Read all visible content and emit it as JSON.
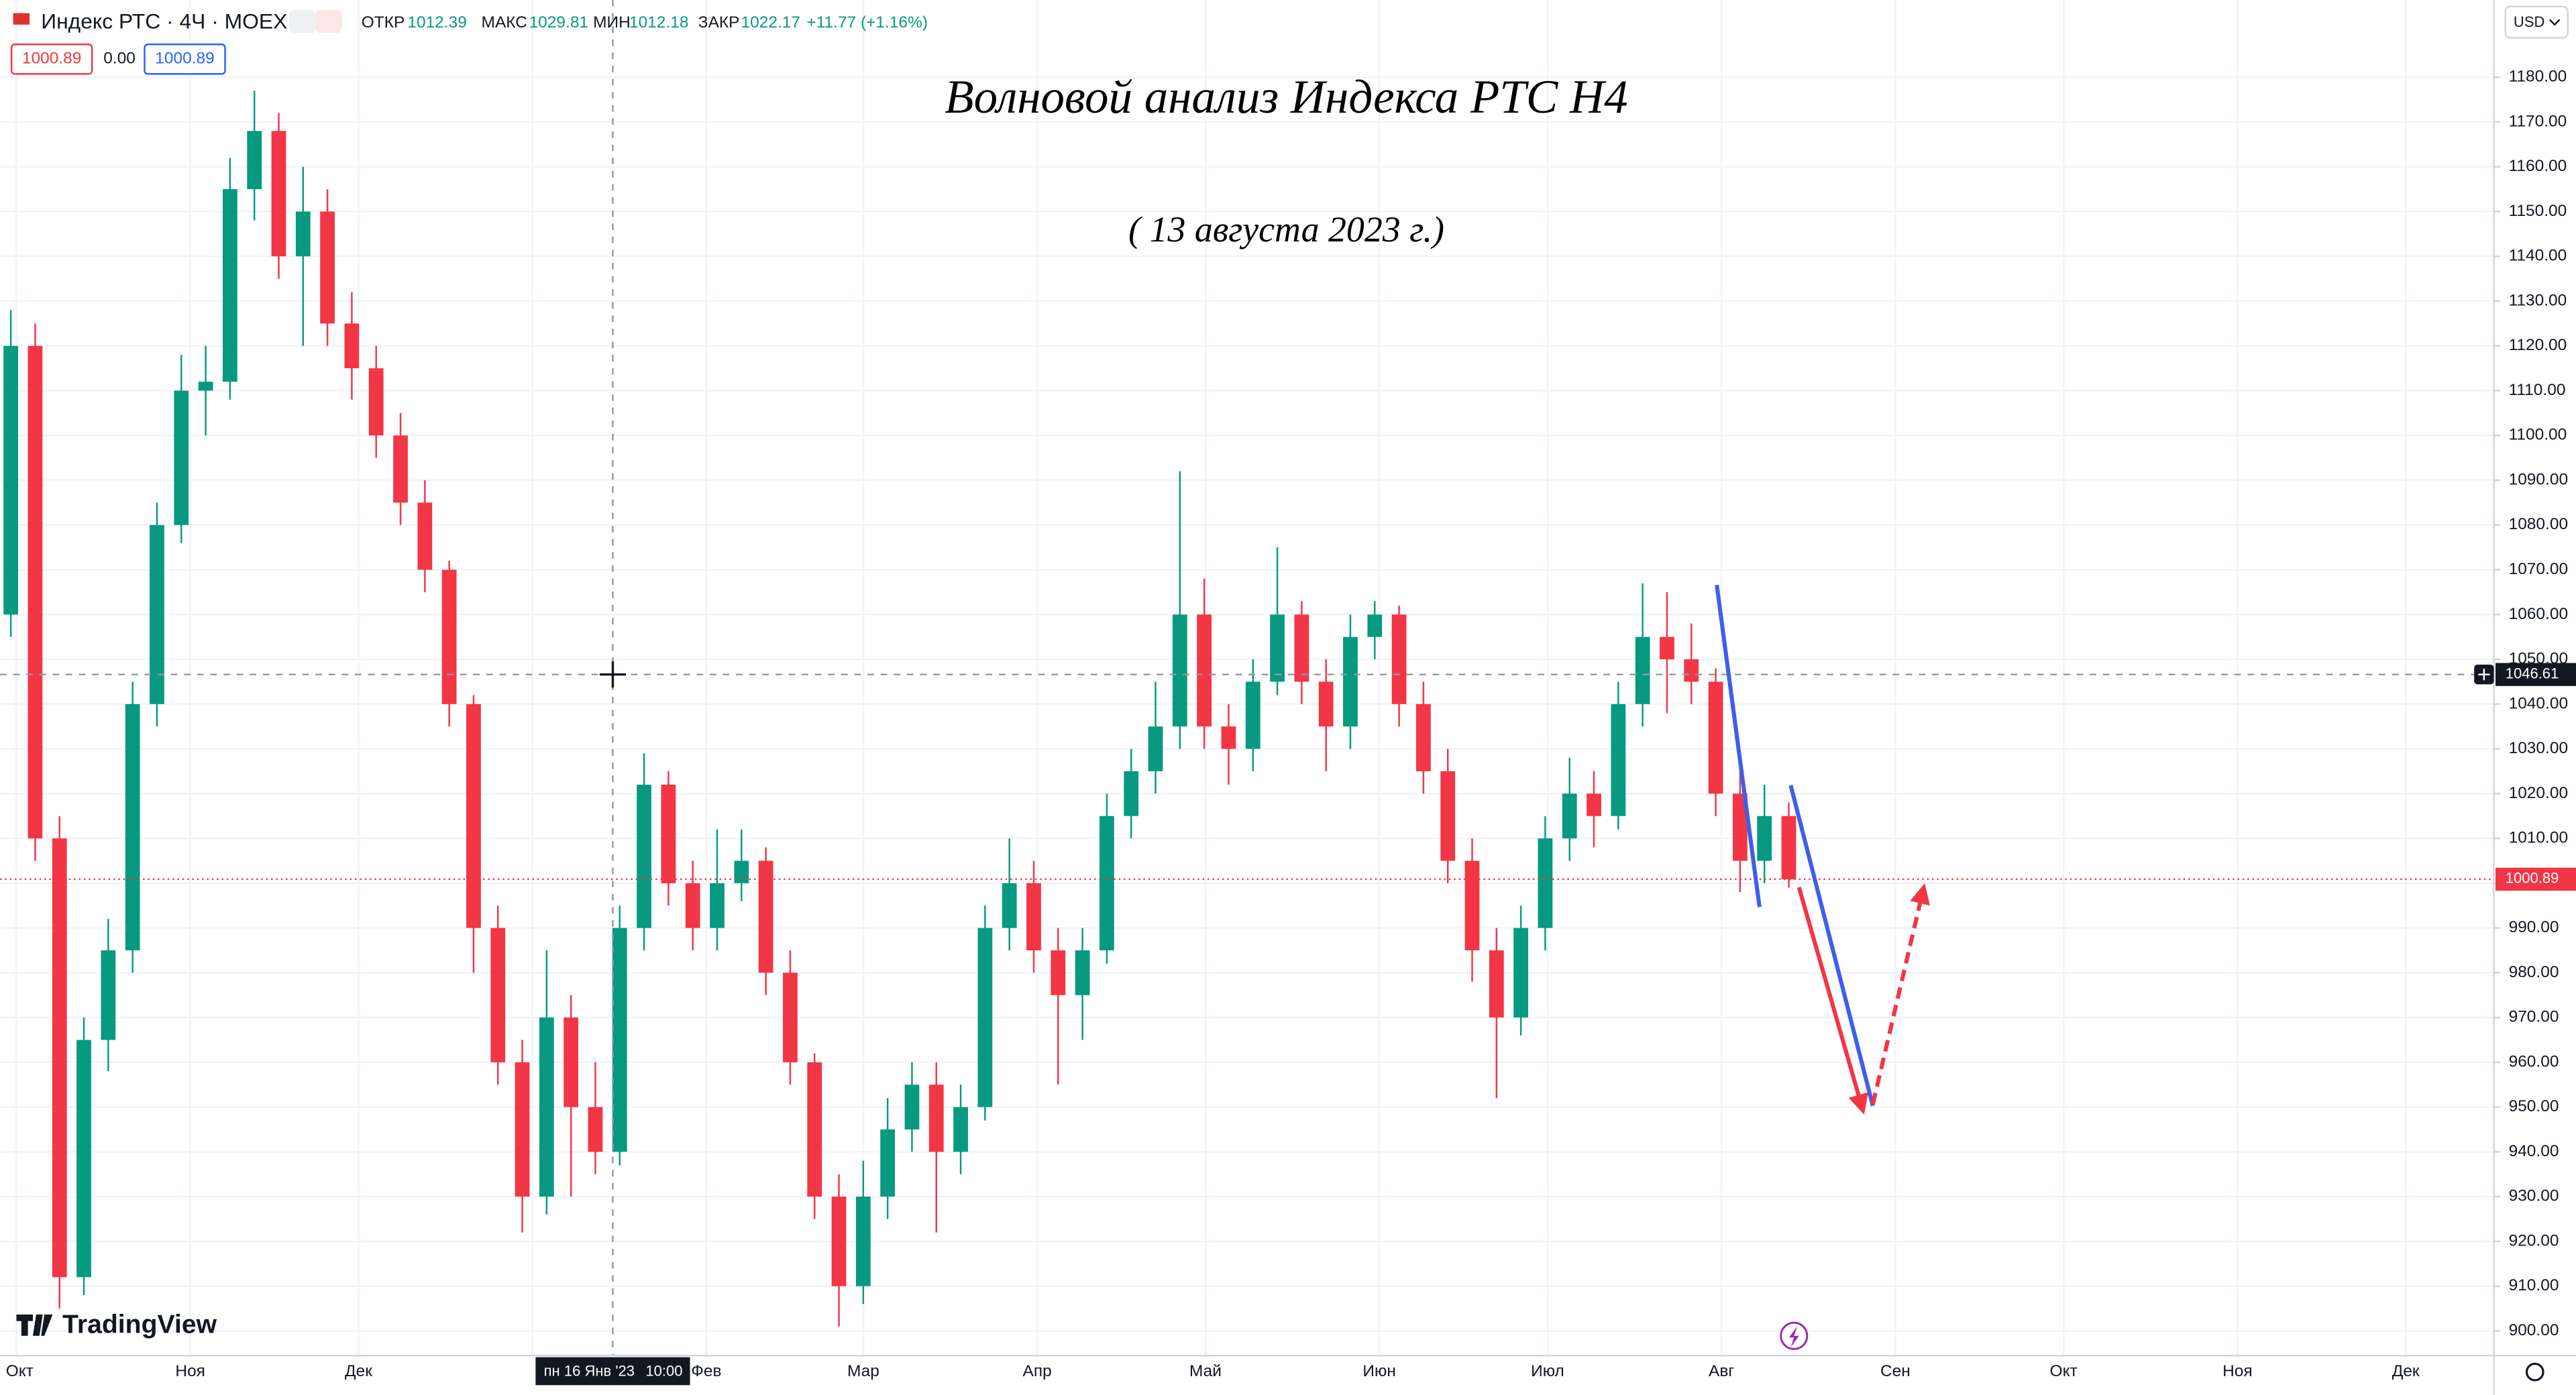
{
  "header": {
    "symbol": "Индекс РТС · 4Ч · MOEX",
    "ohlc": [
      {
        "label": "ОТКР",
        "value": 1012.39
      },
      {
        "label": "МАКС",
        "value": 1029.81
      },
      {
        "label": "МИН",
        "value": 1012.18
      },
      {
        "label": "ЗАКР",
        "value": 1022.17
      }
    ],
    "change": "+11.77 (+1.16%)",
    "price_boxes": [
      1000.89,
      "0.00",
      1000.89
    ],
    "currency": "USD"
  },
  "chart_data": {
    "type": "candlestick",
    "title": "Волновой анализ Индекса РТС Н4",
    "subtitle": "( 13 августа 2023 г.)",
    "open": [
      1060,
      1120,
      1010,
      912,
      965,
      985,
      1040,
      1080,
      1110,
      1112,
      1155,
      1168,
      1140,
      1150,
      1125,
      1115,
      1100,
      1085,
      1070,
      1040,
      990,
      960,
      930,
      970,
      950,
      940,
      990,
      1022,
      1000,
      990,
      1000,
      1005,
      980,
      960,
      930,
      910,
      930,
      945,
      955,
      940,
      950,
      990,
      1000,
      985,
      975,
      985,
      1015,
      1025,
      1035,
      1060,
      1035,
      1030,
      1045,
      1060,
      1045,
      1035,
      1055,
      1060,
      1040,
      1025,
      1005,
      985,
      970,
      990,
      1010,
      1020,
      1015,
      1040,
      1055,
      1050,
      1045,
      1020,
      1005,
      1015
    ],
    "high": [
      1128,
      1125,
      1015,
      970,
      992,
      1045,
      1085,
      1118,
      1120,
      1162,
      1177,
      1172,
      1160,
      1155,
      1132,
      1120,
      1105,
      1090,
      1072,
      1042,
      995,
      965,
      985,
      975,
      960,
      995,
      1029,
      1025,
      1005,
      1012,
      1012,
      1008,
      985,
      962,
      935,
      938,
      952,
      960,
      960,
      955,
      995,
      1010,
      1005,
      990,
      990,
      1020,
      1030,
      1045,
      1092,
      1068,
      1040,
      1050,
      1075,
      1063,
      1050,
      1060,
      1063,
      1062,
      1045,
      1030,
      1010,
      990,
      995,
      1015,
      1028,
      1025,
      1045,
      1067,
      1065,
      1058,
      1048,
      1025,
      1022,
      1018
    ],
    "low": [
      1055,
      1005,
      905,
      908,
      958,
      980,
      1035,
      1076,
      1100,
      1108,
      1148,
      1135,
      1120,
      1120,
      1108,
      1095,
      1080,
      1065,
      1035,
      980,
      955,
      922,
      926,
      930,
      935,
      937,
      985,
      995,
      985,
      985,
      996,
      975,
      955,
      925,
      901,
      906,
      925,
      940,
      922,
      935,
      947,
      985,
      980,
      955,
      965,
      982,
      1010,
      1020,
      1030,
      1030,
      1022,
      1025,
      1042,
      1040,
      1025,
      1030,
      1050,
      1035,
      1020,
      1000,
      978,
      952,
      966,
      985,
      1005,
      1008,
      1012,
      1035,
      1038,
      1040,
      1015,
      998,
      1000,
      999
    ],
    "close": [
      1120,
      1010,
      912,
      965,
      985,
      1040,
      1080,
      1110,
      1112,
      1155,
      1168,
      1140,
      1150,
      1125,
      1115,
      1100,
      1085,
      1070,
      1040,
      990,
      960,
      930,
      970,
      950,
      940,
      990,
      1022,
      1000,
      990,
      1000,
      1005,
      980,
      960,
      930,
      910,
      930,
      945,
      955,
      940,
      950,
      990,
      1000,
      985,
      975,
      985,
      1015,
      1025,
      1035,
      1060,
      1035,
      1030,
      1045,
      1060,
      1045,
      1035,
      1055,
      1060,
      1040,
      1025,
      1005,
      985,
      970,
      990,
      1010,
      1020,
      1015,
      1040,
      1055,
      1050,
      1045,
      1020,
      1005,
      1015,
      1000.89
    ],
    "up_color": "#089981",
    "down_color": "#f23645",
    "grid": true,
    "ylim": [
      894.5,
      1197.25
    ],
    "yticks": [
      {
        "value": 900,
        "label": "900.00"
      },
      {
        "value": 910,
        "label": "910.00"
      },
      {
        "value": 920,
        "label": "920.00"
      },
      {
        "value": 930,
        "label": "930.00"
      },
      {
        "value": 940,
        "label": "940.00"
      },
      {
        "value": 950,
        "label": "950.00"
      },
      {
        "value": 960,
        "label": "960.00"
      },
      {
        "value": 970,
        "label": "970.00"
      },
      {
        "value": 980,
        "label": "980.00"
      },
      {
        "value": 990,
        "label": "990.00"
      },
      {
        "value": 1000,
        "label": "1000.00"
      },
      {
        "value": 1010,
        "label": "1010.00"
      },
      {
        "value": 1020,
        "label": "1020.00"
      },
      {
        "value": 1030,
        "label": "1030.00"
      },
      {
        "value": 1040,
        "label": "1040.00"
      },
      {
        "value": 1050,
        "label": "1050.00"
      },
      {
        "value": 1060,
        "label": "1060.00"
      },
      {
        "value": 1070,
        "label": "1070.00"
      },
      {
        "value": 1080,
        "label": "1080.00"
      },
      {
        "value": 1090,
        "label": "1090.00"
      },
      {
        "value": 1100,
        "label": "1100.00"
      },
      {
        "value": 1110,
        "label": "1110.00"
      },
      {
        "value": 1120,
        "label": "1120.00"
      },
      {
        "value": 1130,
        "label": "1130.00"
      },
      {
        "value": 1140,
        "label": "1140.00"
      },
      {
        "value": 1150,
        "label": "1150.00"
      },
      {
        "value": 1160,
        "label": "1160.00"
      },
      {
        "value": 1170,
        "label": "1170.00"
      },
      {
        "value": 1180,
        "label": "1180.00"
      }
    ],
    "x_labels": [
      "Окт",
      "Ноя",
      "Дек",
      null,
      "Фев",
      "Мар",
      "Апр",
      "Май",
      "Июн",
      "Июл",
      "Авг",
      "Сен",
      "Окт",
      "Ноя",
      "Дек"
    ],
    "last_price": 1000.89,
    "crosshair_price": 1046.61,
    "crosshair_time": [
      "пн 16 Янв '23",
      "10:00"
    ]
  },
  "branding": "TradingView"
}
